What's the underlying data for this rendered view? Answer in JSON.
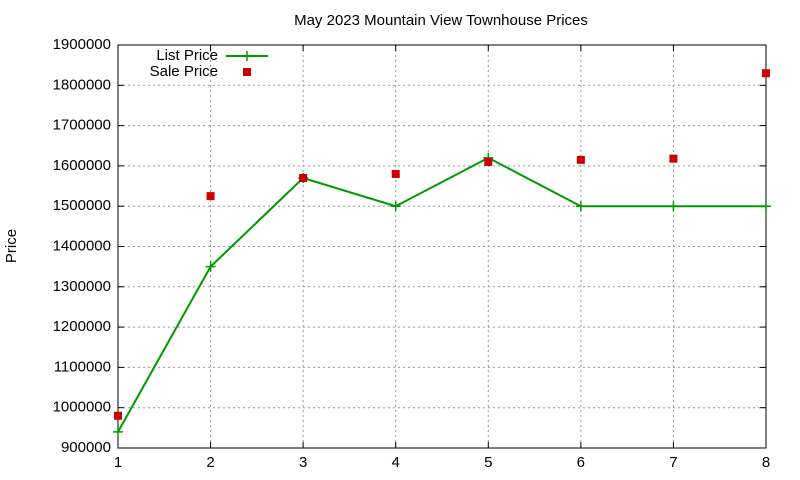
{
  "chart_data": {
    "type": "line",
    "title": "May 2023 Mountain View Townhouse Prices",
    "y_label": "Price",
    "x": [
      1,
      2,
      3,
      4,
      5,
      6,
      7,
      8
    ],
    "series": [
      {
        "name": "List Price",
        "color": "#009900",
        "style": "linespoints",
        "values": [
          940000,
          1350000,
          1570000,
          1500000,
          1620000,
          1500000,
          1500000,
          1500000
        ]
      },
      {
        "name": "Sale Price",
        "color": "#cc0000",
        "style": "points",
        "values": [
          980000,
          1525000,
          1570000,
          1580000,
          1610000,
          1615000,
          1618000,
          1830000
        ]
      }
    ],
    "xlim": [
      1,
      8
    ],
    "xticks": [
      1,
      2,
      3,
      4,
      5,
      6,
      7,
      8
    ],
    "ylim": [
      900000,
      1900000
    ],
    "yticks": [
      900000,
      1000000,
      1100000,
      1200000,
      1300000,
      1400000,
      1500000,
      1600000,
      1700000,
      1800000,
      1900000
    ],
    "grid": true,
    "legend": "top-left"
  }
}
